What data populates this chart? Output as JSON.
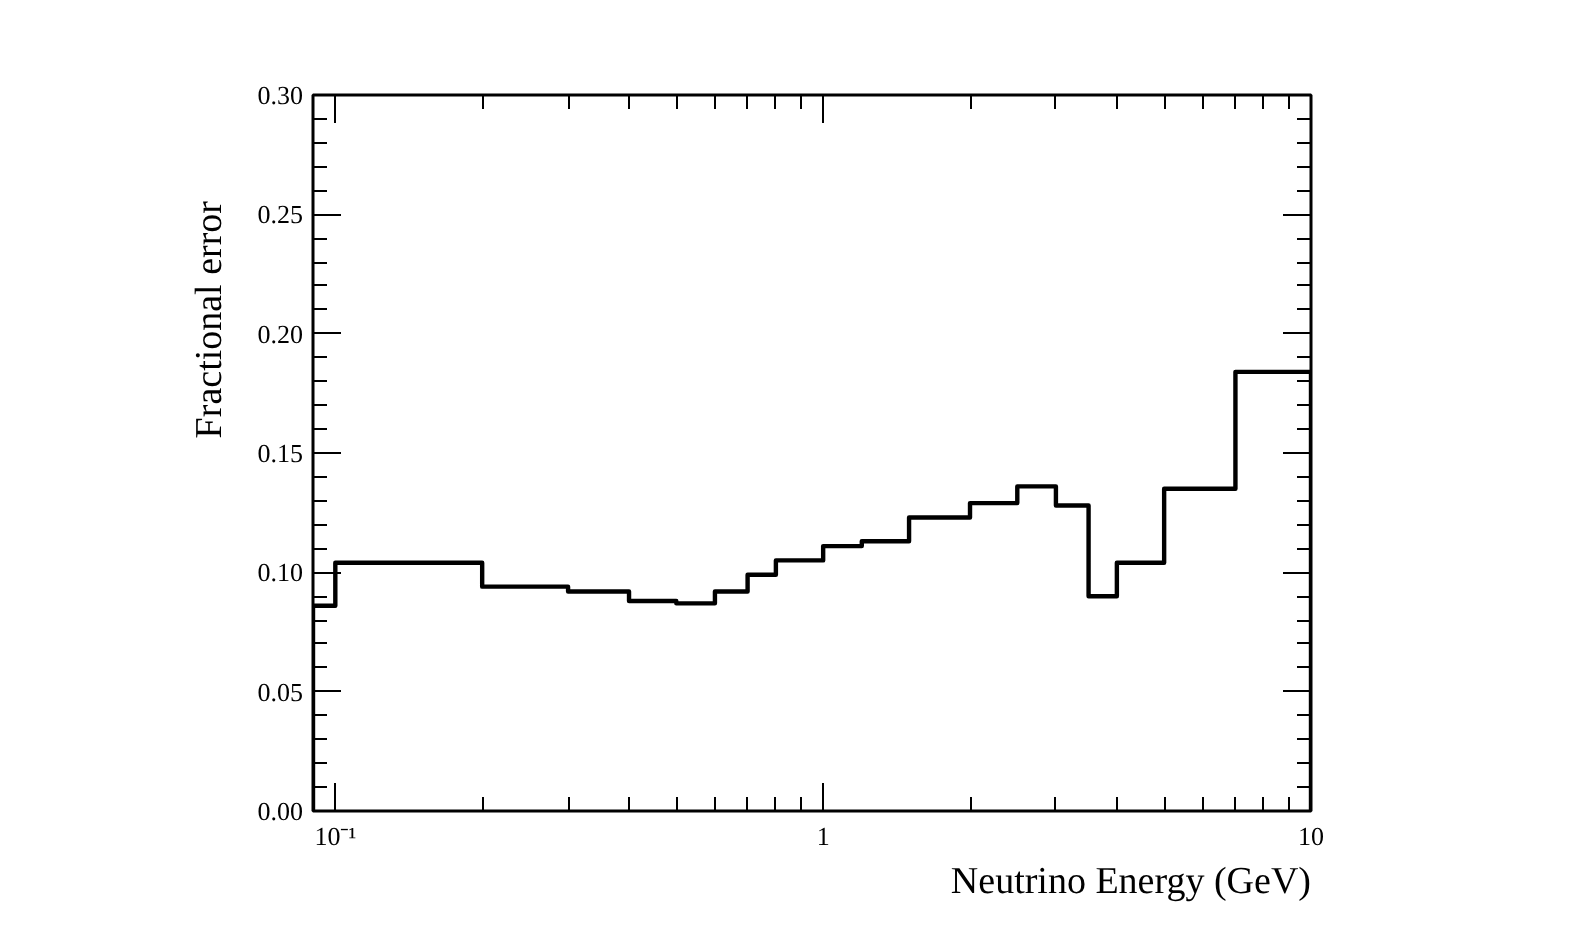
{
  "chart_data": {
    "type": "histogram",
    "xlabel": "Neutrino Energy (GeV)",
    "ylabel": "Fractional error",
    "color": "#000000",
    "bins": [
      0.09,
      0.1,
      0.2,
      0.3,
      0.4,
      0.5,
      0.6,
      0.7,
      0.8,
      1.0,
      1.2,
      1.5,
      2,
      2.5,
      3,
      3.5,
      4,
      5,
      7,
      10
    ],
    "values": [
      0.086,
      0.104,
      0.094,
      0.092,
      0.088,
      0.087,
      0.092,
      0.099,
      0.105,
      0.111,
      0.113,
      0.123,
      0.129,
      0.136,
      0.128,
      0.09,
      0.104,
      0.135,
      0.184
    ],
    "log": "x",
    "grid": false,
    "xlim": [
      0.09,
      10
    ],
    "xticks": [
      {
        "value": 0.1,
        "label": "10⁻¹"
      },
      1,
      10
    ],
    "ylim": [
      0,
      0.3
    ],
    "yticks": [
      {
        "value": 0,
        "label": "0.00"
      },
      {
        "value": 0.05,
        "label": "0.05"
      },
      {
        "value": 0.1,
        "label": "0.10"
      },
      {
        "value": 0.15,
        "label": "0.15"
      },
      {
        "value": 0.2,
        "label": "0.20"
      },
      {
        "value": 0.25,
        "label": "0.25"
      },
      {
        "value": 0.3,
        "label": "0.30"
      }
    ]
  }
}
